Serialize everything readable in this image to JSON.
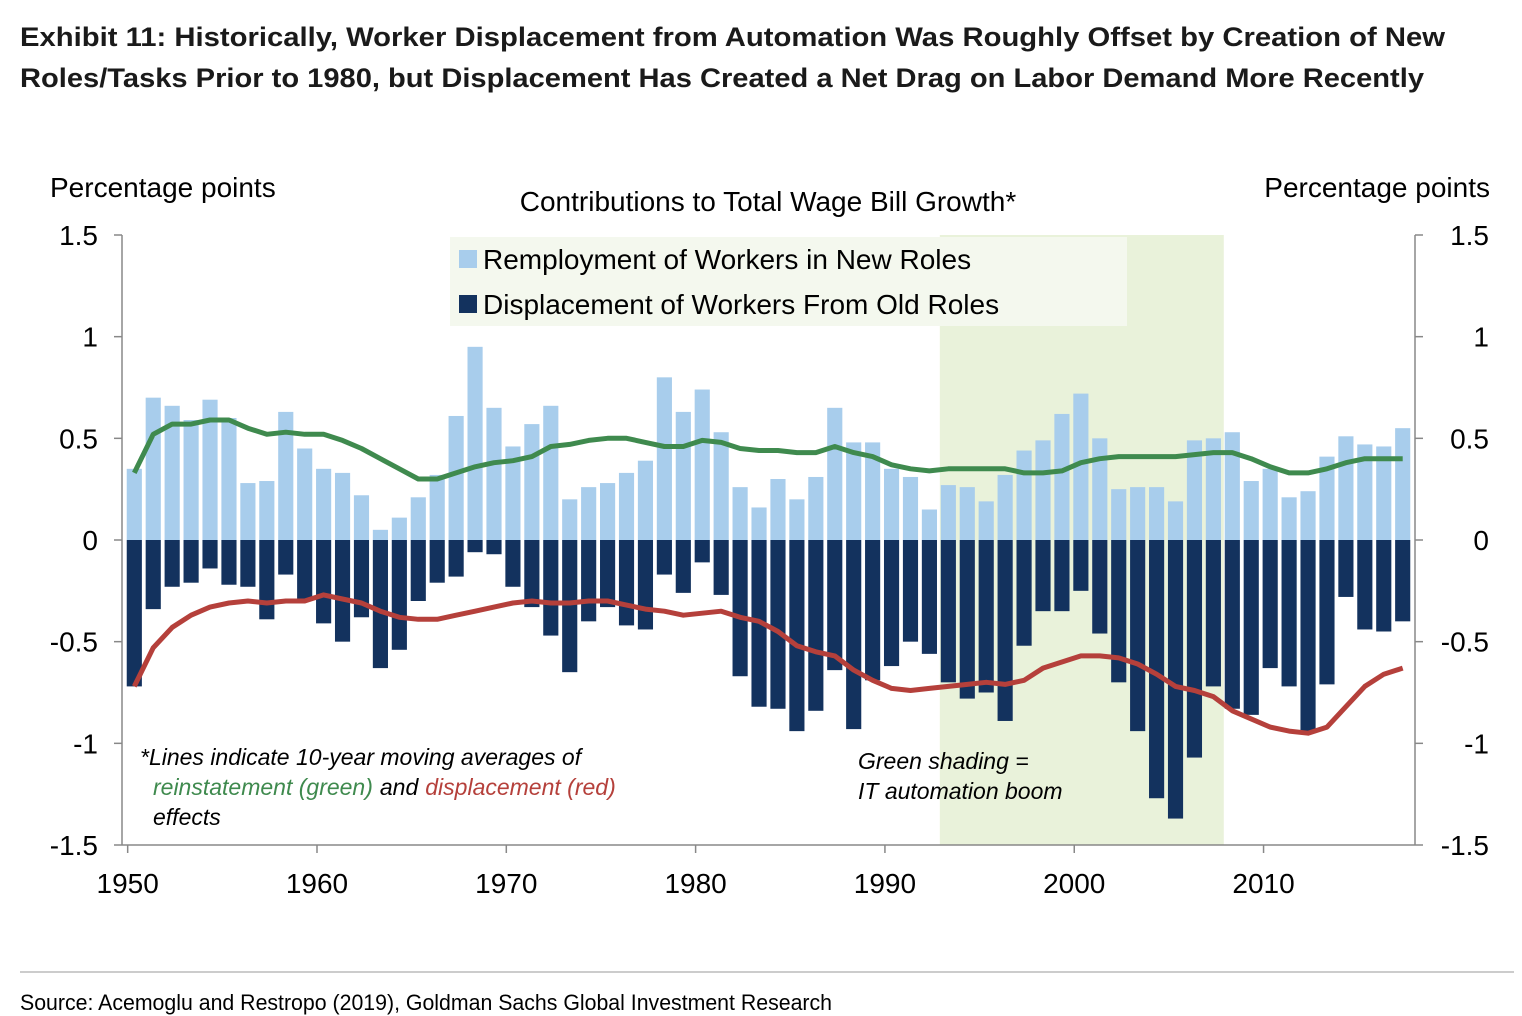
{
  "chart_data": {
    "type": "bar",
    "title": [
      "Exhibit 11: Historically, Worker Displacement from Automation Was Roughly Offset by Creation of New",
      "Roles/Tasks Prior to 1980, but Displacement Has Created a Net Drag on Labor Demand More Recently"
    ],
    "subtitle": "Contributions to Total Wage Bill Growth*",
    "y_label": "Percentage points",
    "y2_label": "Percentage points",
    "x": [
      1950,
      1951,
      1952,
      1953,
      1954,
      1955,
      1956,
      1957,
      1958,
      1959,
      1960,
      1961,
      1962,
      1963,
      1964,
      1965,
      1966,
      1967,
      1968,
      1969,
      1970,
      1971,
      1972,
      1973,
      1974,
      1975,
      1976,
      1977,
      1978,
      1979,
      1980,
      1981,
      1982,
      1983,
      1984,
      1985,
      1986,
      1987,
      1988,
      1989,
      1990,
      1991,
      1992,
      1993,
      1994,
      1995,
      1996,
      1997,
      1998,
      1999,
      2000,
      2001,
      2002,
      2003,
      2004,
      2005,
      2006,
      2007,
      2008,
      2009,
      2010,
      2011,
      2012,
      2013,
      2014,
      2015,
      2016,
      2017
    ],
    "series": [
      {
        "name": "Remployment of Workers in New Roles",
        "type": "bar",
        "color": "#a8cdec",
        "values": [
          0.35,
          0.7,
          0.66,
          0.59,
          0.69,
          0.6,
          0.28,
          0.29,
          0.63,
          0.45,
          0.35,
          0.33,
          0.22,
          0.05,
          0.11,
          0.21,
          0.32,
          0.61,
          0.95,
          0.65,
          0.46,
          0.57,
          0.66,
          0.2,
          0.26,
          0.28,
          0.33,
          0.39,
          0.8,
          0.63,
          0.74,
          0.53,
          0.26,
          0.16,
          0.3,
          0.2,
          0.31,
          0.65,
          0.48,
          0.48,
          0.35,
          0.31,
          0.15,
          0.27,
          0.26,
          0.19,
          0.32,
          0.44,
          0.49,
          0.62,
          0.72,
          0.5,
          0.25,
          0.26,
          0.26,
          0.19,
          0.49,
          0.5,
          0.53,
          0.29,
          0.35,
          0.21,
          0.24,
          0.41,
          0.51,
          0.47,
          0.46,
          0.55
        ]
      },
      {
        "name": "Displacement of Workers From Old Roles",
        "type": "bar",
        "color": "#13325e",
        "values": [
          -0.72,
          -0.34,
          -0.23,
          -0.21,
          -0.14,
          -0.22,
          -0.23,
          -0.39,
          -0.17,
          -0.29,
          -0.41,
          -0.5,
          -0.38,
          -0.63,
          -0.54,
          -0.3,
          -0.21,
          -0.18,
          -0.06,
          -0.07,
          -0.23,
          -0.33,
          -0.47,
          -0.65,
          -0.4,
          -0.33,
          -0.42,
          -0.44,
          -0.17,
          -0.26,
          -0.11,
          -0.27,
          -0.67,
          -0.82,
          -0.83,
          -0.94,
          -0.84,
          -0.64,
          -0.93,
          -0.69,
          -0.62,
          -0.5,
          -0.56,
          -0.7,
          -0.78,
          -0.75,
          -0.89,
          -0.52,
          -0.35,
          -0.35,
          -0.25,
          -0.46,
          -0.7,
          -0.94,
          -1.27,
          -1.37,
          -1.07,
          -0.72,
          -0.83,
          -0.86,
          -0.63,
          -0.72,
          -0.95,
          -0.71,
          -0.28,
          -0.44,
          -0.45,
          -0.4
        ]
      },
      {
        "type": "line",
        "color": "#3f8a4e",
        "values": [
          0.33,
          0.52,
          0.57,
          0.57,
          0.59,
          0.59,
          0.55,
          0.52,
          0.53,
          0.52,
          0.52,
          0.49,
          0.45,
          0.4,
          0.35,
          0.3,
          0.3,
          0.33,
          0.36,
          0.38,
          0.39,
          0.41,
          0.46,
          0.47,
          0.49,
          0.5,
          0.5,
          0.48,
          0.46,
          0.46,
          0.49,
          0.48,
          0.45,
          0.44,
          0.44,
          0.43,
          0.43,
          0.46,
          0.43,
          0.41,
          0.37,
          0.35,
          0.34,
          0.35,
          0.35,
          0.35,
          0.35,
          0.33,
          0.33,
          0.34,
          0.38,
          0.4,
          0.41,
          0.41,
          0.41,
          0.41,
          0.42,
          0.43,
          0.43,
          0.4,
          0.36,
          0.33,
          0.33,
          0.35,
          0.38,
          0.4,
          0.4,
          0.4
        ]
      },
      {
        "type": "line",
        "color": "#b5403b",
        "values": [
          -0.72,
          -0.53,
          -0.43,
          -0.37,
          -0.33,
          -0.31,
          -0.3,
          -0.31,
          -0.3,
          -0.3,
          -0.27,
          -0.29,
          -0.31,
          -0.35,
          -0.38,
          -0.39,
          -0.39,
          -0.37,
          -0.35,
          -0.33,
          -0.31,
          -0.3,
          -0.31,
          -0.31,
          -0.3,
          -0.3,
          -0.32,
          -0.34,
          -0.35,
          -0.37,
          -0.36,
          -0.35,
          -0.38,
          -0.4,
          -0.45,
          -0.52,
          -0.55,
          -0.57,
          -0.64,
          -0.69,
          -0.73,
          -0.74,
          -0.73,
          -0.72,
          -0.71,
          -0.7,
          -0.71,
          -0.69,
          -0.63,
          -0.6,
          -0.57,
          -0.57,
          -0.58,
          -0.61,
          -0.66,
          -0.72,
          -0.74,
          -0.77,
          -0.84,
          -0.88,
          -0.92,
          -0.94,
          -0.95,
          -0.92,
          -0.82,
          -0.72,
          -0.66,
          -0.63
        ]
      }
    ],
    "xlim": [
      1949.7,
      2018.0
    ],
    "xticks": [
      1950,
      1960,
      1970,
      1980,
      1990,
      2000,
      2010
    ],
    "ylim": [
      -1.5,
      1.5
    ],
    "yticks": [
      1.5,
      1,
      0.5,
      0,
      -0.5,
      -1,
      -1.5
    ],
    "y2lim": [
      -1.5,
      1.5
    ],
    "y2ticks": [
      1.5,
      1,
      0.5,
      0,
      -0.5,
      -1,
      -1.5
    ],
    "shaded_span": [
      1992.9,
      2007.9
    ],
    "shade_color": "#e9f2da",
    "note": {
      "line1": "*Lines indicate 10-year moving averages of",
      "green_part": "reinstatement (green)",
      "joiner": "and",
      "red_part": "displacement (red)",
      "line3": "effects"
    },
    "shade_note": [
      "Green shading =",
      "IT automation boom"
    ],
    "source": "Source: Acemoglu and Restropo (2019), Goldman Sachs Global Investment Research"
  }
}
